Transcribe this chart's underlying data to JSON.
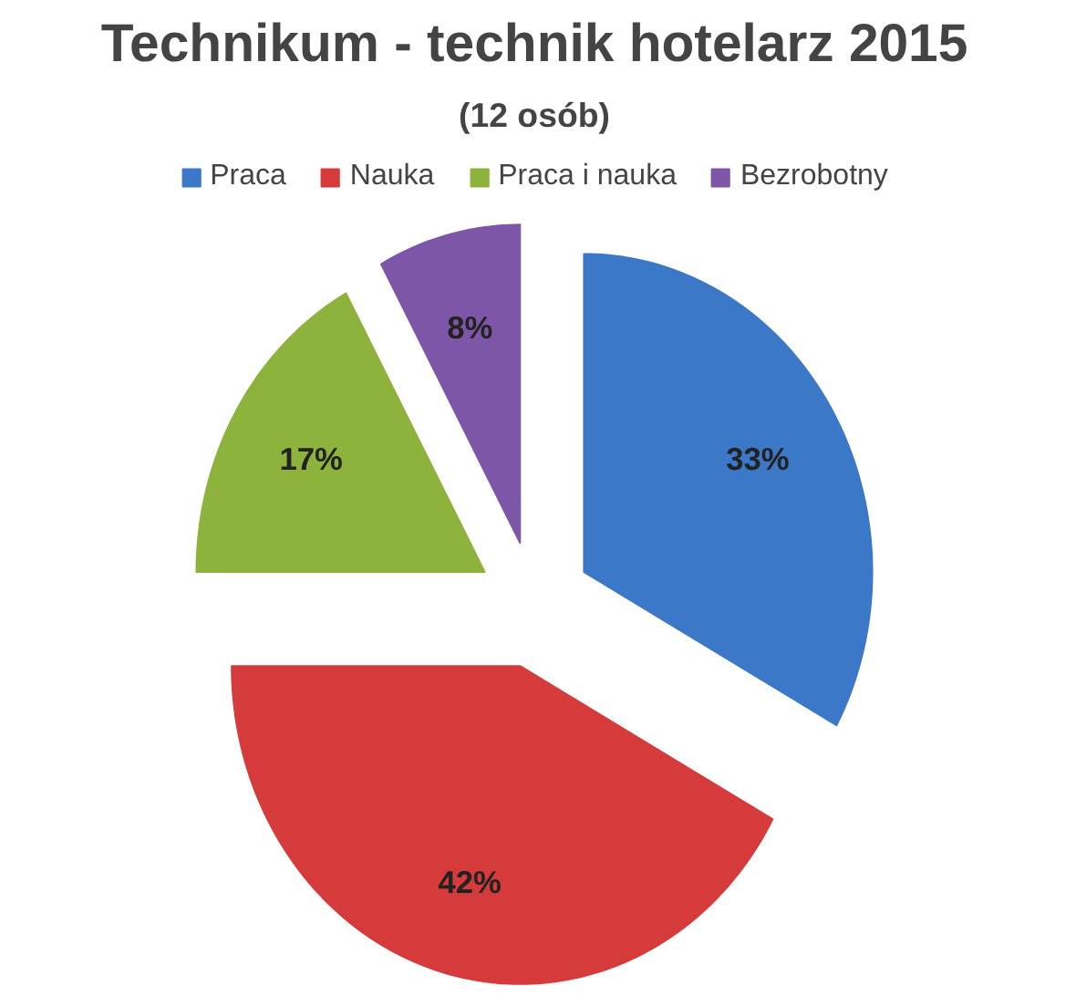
{
  "chart_data": {
    "type": "pie",
    "title": "Technikum - technik hotelarz 2015",
    "subtitle": "(12 osób)",
    "categories": [
      "Praca",
      "Nauka",
      "Praca i nauka",
      "Bezrobotny"
    ],
    "values": [
      33,
      42,
      17,
      8
    ],
    "colors": [
      "#3c78c8",
      "#d63b3b",
      "#8db33c",
      "#7e56a8"
    ],
    "value_labels": [
      "33%",
      "42%",
      "17%",
      "8%"
    ],
    "legend": "top"
  }
}
